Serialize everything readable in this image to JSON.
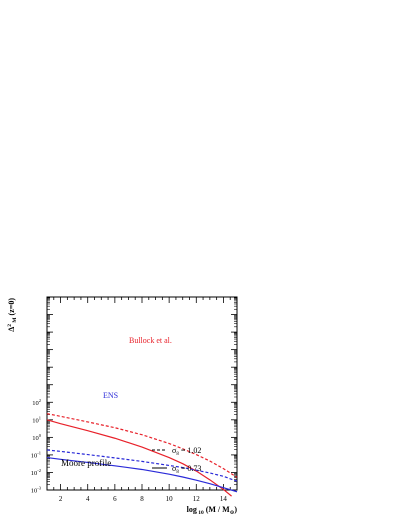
{
  "chart_data": {
    "type": "line",
    "xlabel": {
      "main": "log",
      "sub": "10",
      "rest": "(M / M",
      "sun": "⊙",
      "close": ")"
    },
    "ylabel": {
      "main": "Δ",
      "sup": "2",
      "sub": "M",
      "rest": "(z=0)"
    },
    "xlim": [
      1,
      15
    ],
    "ylim_log10": [
      -3,
      8
    ],
    "xticks": [
      2,
      4,
      6,
      8,
      10,
      12,
      14
    ],
    "yticks": [
      {
        "value": -3,
        "label_base": "10",
        "label_exp": "-3"
      },
      {
        "value": -2,
        "label_base": "10",
        "label_exp": "-2"
      },
      {
        "value": -1,
        "label_base": "10",
        "label_exp": "-1"
      },
      {
        "value": 0,
        "label_base": "10",
        "label_exp": "0"
      },
      {
        "value": 1,
        "label_base": "10",
        "label_exp": "1"
      },
      {
        "value": 2,
        "label_base": "10",
        "label_exp": "2"
      }
    ],
    "scale": "log-y",
    "colors": {
      "bullock": "#e8212a",
      "ens": "#2a2ad8",
      "axis": "#000000"
    },
    "series": [
      {
        "group": "Bullock",
        "sigma": "1.02",
        "style": "dashed",
        "color": "#e8212a",
        "x": [
          1,
          2,
          4,
          6,
          8,
          10,
          11,
          12,
          13,
          14,
          15
        ],
        "log10_y": [
          1.35,
          1.2,
          0.88,
          0.55,
          0.15,
          -0.35,
          -0.65,
          -0.98,
          -1.35,
          -1.78,
          -2.28
        ]
      },
      {
        "group": "Bullock",
        "sigma": "0.73",
        "style": "solid",
        "color": "#e8212a",
        "x": [
          1,
          2,
          4,
          6,
          8,
          10,
          11,
          12,
          13,
          14,
          14.6
        ],
        "log10_y": [
          1.0,
          0.78,
          0.38,
          -0.05,
          -0.55,
          -1.15,
          -1.5,
          -1.92,
          -2.42,
          -2.97,
          -3.35
        ]
      },
      {
        "group": "ENS",
        "sigma": "1.02",
        "style": "dashed",
        "color": "#2a2ad8",
        "x": [
          1,
          2,
          4,
          6,
          8,
          10,
          11,
          12,
          13,
          14,
          15
        ],
        "log10_y": [
          -0.72,
          -0.8,
          -0.98,
          -1.17,
          -1.37,
          -1.6,
          -1.72,
          -1.87,
          -2.03,
          -2.22,
          -2.5
        ]
      },
      {
        "group": "ENS",
        "sigma": "0.73",
        "style": "solid",
        "color": "#2a2ad8",
        "x": [
          1,
          2,
          4,
          6,
          8,
          10,
          11,
          12,
          13,
          14,
          15
        ],
        "log10_y": [
          -1.15,
          -1.25,
          -1.43,
          -1.62,
          -1.83,
          -2.1,
          -2.26,
          -2.44,
          -2.64,
          -2.87,
          -3.1
        ]
      }
    ],
    "annotations": [
      {
        "id": "bullock",
        "text": "Bullock et al.",
        "color": "#e8212a"
      },
      {
        "id": "ens",
        "text": "ENS",
        "color": "#2a2ad8"
      },
      {
        "id": "profile",
        "text": "Moore profile",
        "color": "#000000"
      }
    ],
    "legend": {
      "placement": "bottom-right",
      "entries": [
        {
          "style": "dashed",
          "symbol": "σ",
          "sub": "8",
          "text": "= 1.02"
        },
        {
          "style": "solid",
          "symbol": "σ",
          "sub": "8",
          "text": "= 0.73"
        }
      ]
    }
  }
}
